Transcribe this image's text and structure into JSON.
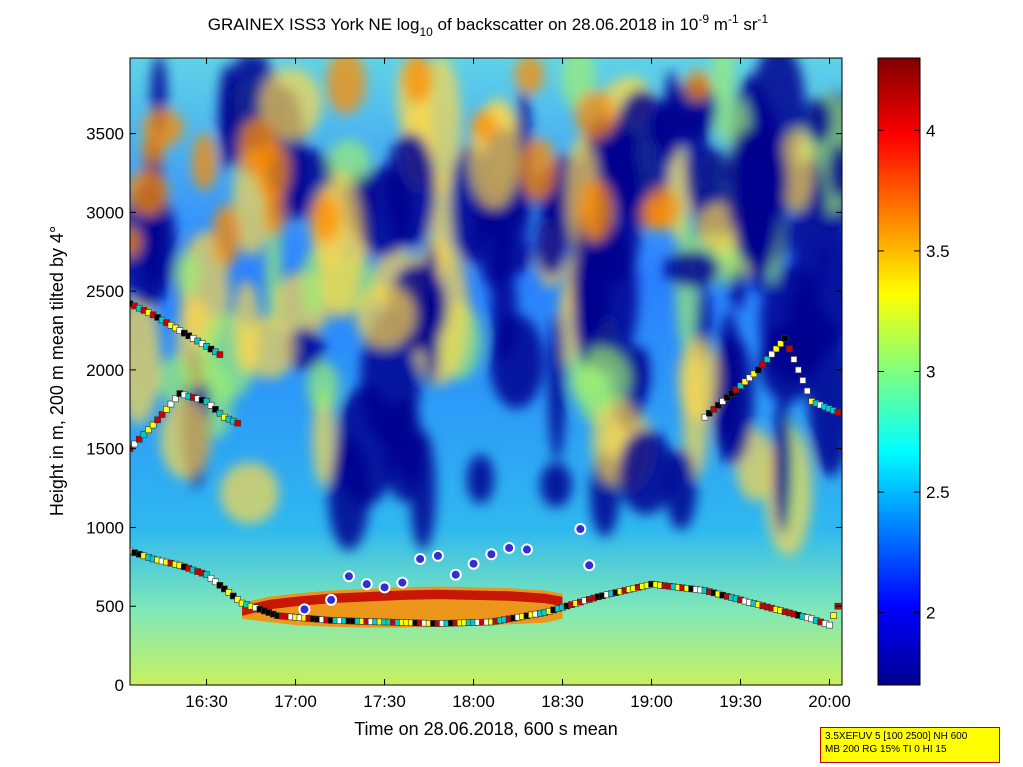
{
  "chart_data": {
    "type": "heatmap",
    "title": {
      "prefix": "GRAINEX ISS3 York NE log",
      "log_base": "10",
      "middle": " of backscatter on 28.06.2018 in 10",
      "exp1": "-9",
      "unit1": " m",
      "exp2": "-1",
      "unit2": " sr",
      "exp3": "-1"
    },
    "xlabel": "Time on 28.06.2018, 600 s mean",
    "ylabel": "Height in m, 200 m mean tilted by 4°",
    "x_ticks": [
      "16:30",
      "17:00",
      "17:30",
      "18:00",
      "18:30",
      "19:00",
      "19:30",
      "20:00"
    ],
    "x_tick_hours": [
      16.5,
      17.0,
      17.5,
      18.0,
      18.5,
      19.0,
      19.5,
      20.0
    ],
    "xlim_hours": [
      16.07,
      20.07
    ],
    "y_ticks": [
      0,
      500,
      1000,
      1500,
      2000,
      2500,
      3000,
      3500
    ],
    "ylim": [
      0,
      3980
    ],
    "colorbar": {
      "ticks": [
        "2",
        "2.5",
        "3",
        "3.5",
        "4"
      ],
      "tick_values": [
        2.0,
        2.5,
        3.0,
        3.5,
        4.0
      ],
      "range": [
        1.7,
        4.3
      ]
    },
    "colormap": "jet",
    "boundary_layer": {
      "hours": [
        16.7,
        16.85,
        17.0,
        17.2,
        17.4,
        17.6,
        17.8,
        18.0,
        18.2,
        18.4,
        18.5
      ],
      "top_m": [
        520,
        560,
        580,
        600,
        610,
        620,
        625,
        620,
        615,
        600,
        580
      ],
      "base_m": [
        420,
        400,
        380,
        370,
        365,
        365,
        370,
        375,
        385,
        395,
        420
      ]
    },
    "cloud_base_layers": [
      {
        "name": "lower",
        "hours": [
          16.07,
          16.2,
          16.35,
          16.5,
          16.7,
          16.9,
          17.2,
          17.5,
          17.8,
          18.1,
          18.4,
          18.7,
          19.0,
          19.3,
          19.5,
          19.7,
          19.9,
          20.0,
          20.07
        ],
        "height_m": [
          850,
          800,
          760,
          700,
          520,
          440,
          410,
          400,
          390,
          400,
          460,
          560,
          640,
          600,
          540,
          480,
          420,
          380,
          560
        ]
      },
      {
        "name": "middle",
        "hours": [
          16.07,
          16.2,
          16.35,
          16.5,
          16.6,
          16.7
        ],
        "height_m": [
          1500,
          1650,
          1850,
          1800,
          1700,
          1650
        ]
      },
      {
        "name": "upper",
        "hours": [
          16.07,
          16.2,
          16.35,
          16.5,
          16.6
        ],
        "height_m": [
          2420,
          2350,
          2250,
          2150,
          2080
        ]
      },
      {
        "name": "evening",
        "hours": [
          19.3,
          19.45,
          19.6,
          19.75,
          19.9,
          20.07
        ],
        "height_m": [
          1700,
          1850,
          2000,
          2200,
          1800,
          1720
        ]
      }
    ],
    "boundary_markers": {
      "hours": [
        17.05,
        17.2,
        17.3,
        17.4,
        17.5,
        17.6,
        17.7,
        17.8,
        17.9,
        18.0,
        18.1,
        18.2,
        18.3,
        18.6,
        18.65
      ],
      "height_m": [
        480,
        540,
        690,
        640,
        620,
        650,
        800,
        820,
        700,
        770,
        830,
        870,
        860,
        990,
        760
      ]
    }
  },
  "info_box": {
    "line1": "3.5XEFUV 5 [100 2500] NH 600",
    "line2": "MB 200 RG 15% TI 0 HI 15"
  }
}
